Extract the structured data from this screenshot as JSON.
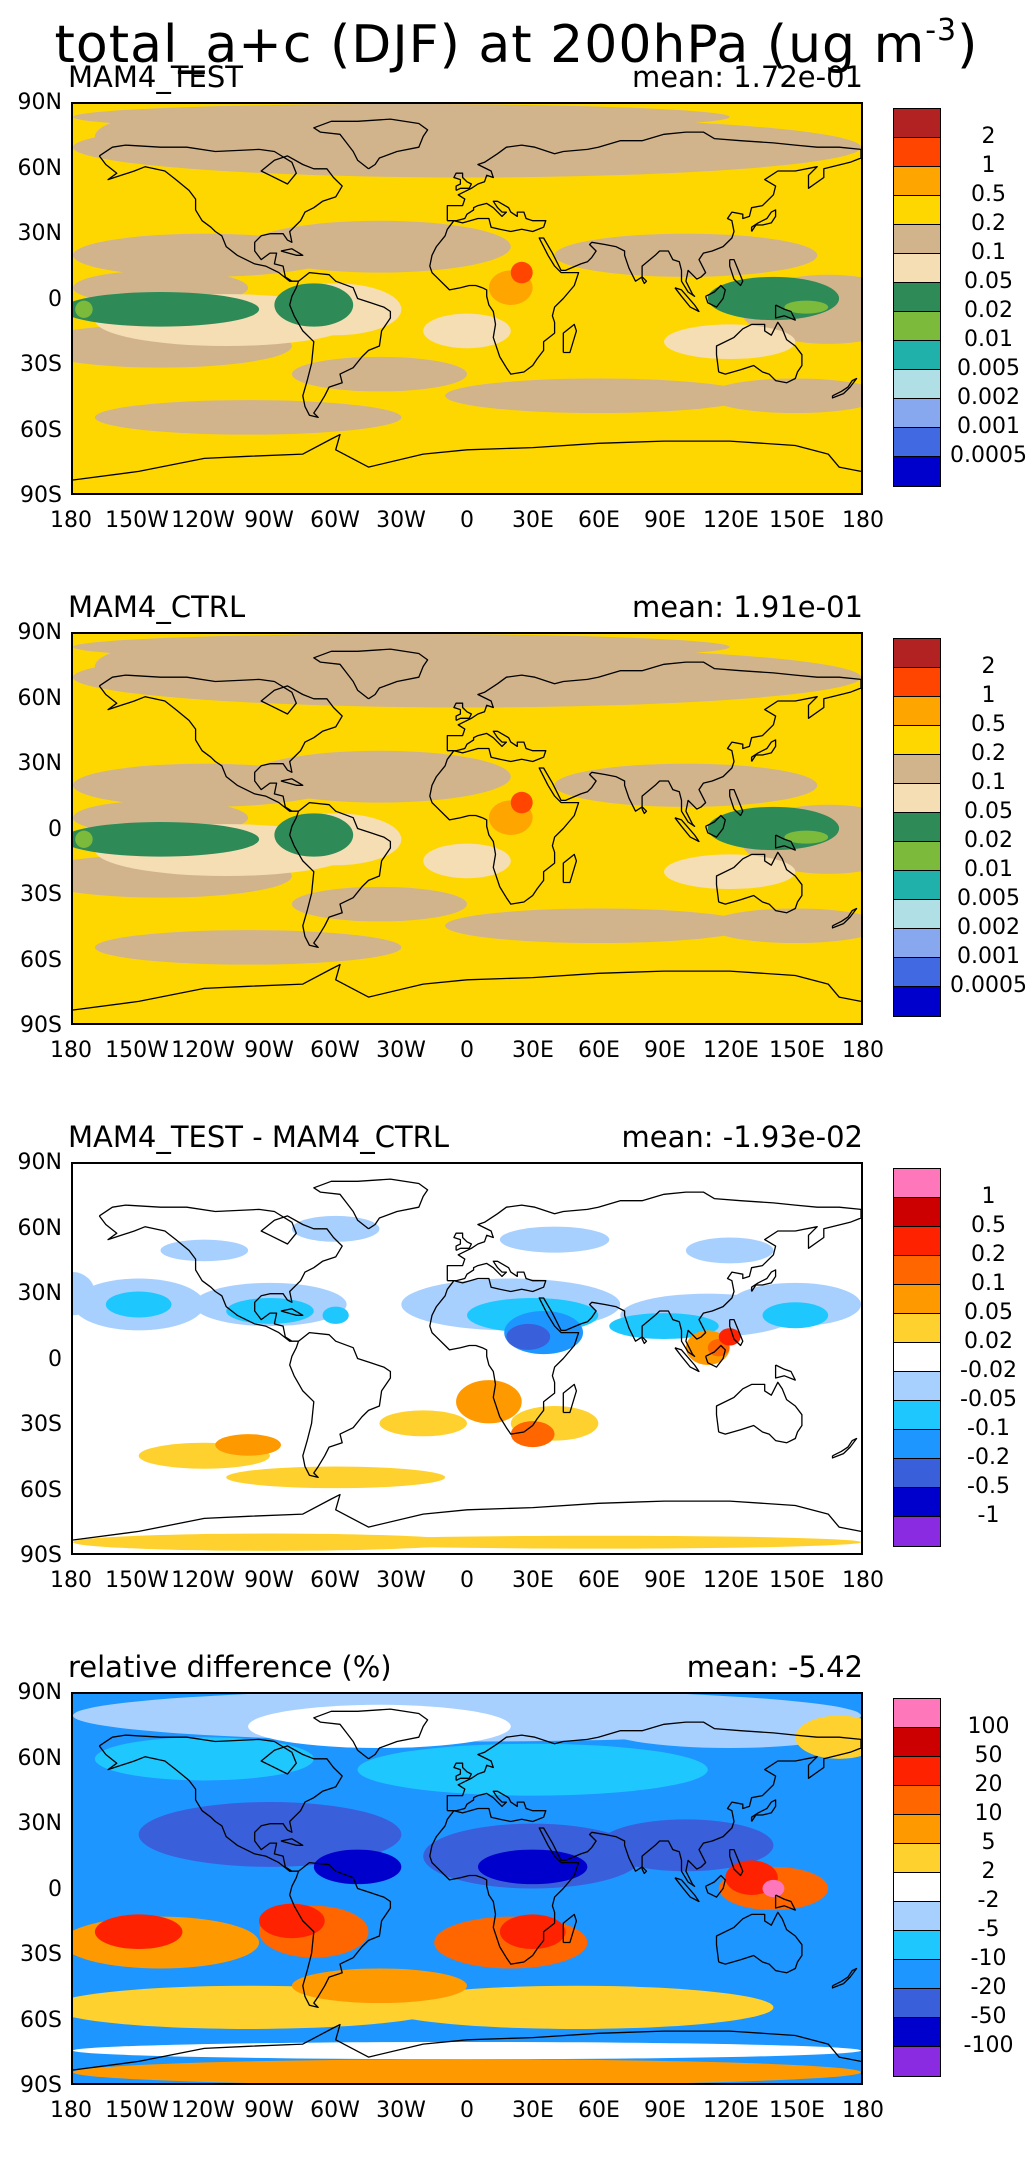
{
  "title": {
    "text": "total_a+c (DJF) at 200hPa (ug m",
    "superscript": "-3",
    "close": ")"
  },
  "axes": {
    "lat_labels": [
      "90N",
      "60N",
      "30N",
      "0",
      "30S",
      "60S",
      "90S"
    ],
    "lon_labels": [
      "180",
      "150W",
      "120W",
      "90W",
      "60W",
      "30W",
      "0",
      "30E",
      "60E",
      "90E",
      "120E",
      "150E",
      "180"
    ]
  },
  "panels": [
    {
      "label": "MAM4_TEST",
      "mean": "mean: 1.72e-01",
      "palette": "abs",
      "levels": [
        "2",
        "1",
        "0.5",
        "0.2",
        "0.1",
        "0.05",
        "0.02",
        "0.01",
        "0.005",
        "0.002",
        "0.001",
        "0.0005"
      ],
      "colors": [
        "#b22222",
        "#ff4500",
        "#ffa500",
        "#ffd700",
        "#d2b48c",
        "#f5deb3",
        "#2e8b57",
        "#7cba3c",
        "#20b2aa",
        "#b0e0e6",
        "#87a8ee",
        "#4169e1",
        "#0000cd"
      ]
    },
    {
      "label": "MAM4_CTRL",
      "mean": "mean: 1.91e-01",
      "palette": "abs",
      "levels": [
        "2",
        "1",
        "0.5",
        "0.2",
        "0.1",
        "0.05",
        "0.02",
        "0.01",
        "0.005",
        "0.002",
        "0.001",
        "0.0005"
      ],
      "colors": [
        "#b22222",
        "#ff4500",
        "#ffa500",
        "#ffd700",
        "#d2b48c",
        "#f5deb3",
        "#2e8b57",
        "#7cba3c",
        "#20b2aa",
        "#b0e0e6",
        "#87a8ee",
        "#4169e1",
        "#0000cd"
      ]
    },
    {
      "label": "MAM4_TEST - MAM4_CTRL",
      "mean": "mean: -1.93e-02",
      "palette": "diff",
      "levels": [
        "1",
        "0.5",
        "0.2",
        "0.1",
        "0.05",
        "0.02",
        "-0.02",
        "-0.05",
        "-0.1",
        "-0.2",
        "-0.5",
        "-1"
      ],
      "colors": [
        "#ff77bb",
        "#cc0000",
        "#ff2200",
        "#ff6600",
        "#ff9900",
        "#ffd12e",
        "#ffffff",
        "#a8d0ff",
        "#1ec8ff",
        "#1e96ff",
        "#3a5fdb",
        "#0000cc",
        "#8a2be2"
      ]
    },
    {
      "label": "relative difference (%)",
      "mean": "mean: -5.42",
      "palette": "rel",
      "levels": [
        "100",
        "50",
        "20",
        "10",
        "5",
        "2",
        "-2",
        "-5",
        "-10",
        "-20",
        "-50",
        "-100"
      ],
      "colors": [
        "#ff77bb",
        "#cc0000",
        "#ff2200",
        "#ff6600",
        "#ff9900",
        "#ffd12e",
        "#ffffff",
        "#a8d0ff",
        "#1ec8ff",
        "#1e96ff",
        "#3a5fdb",
        "#0000cc",
        "#8a2be2"
      ]
    }
  ]
}
